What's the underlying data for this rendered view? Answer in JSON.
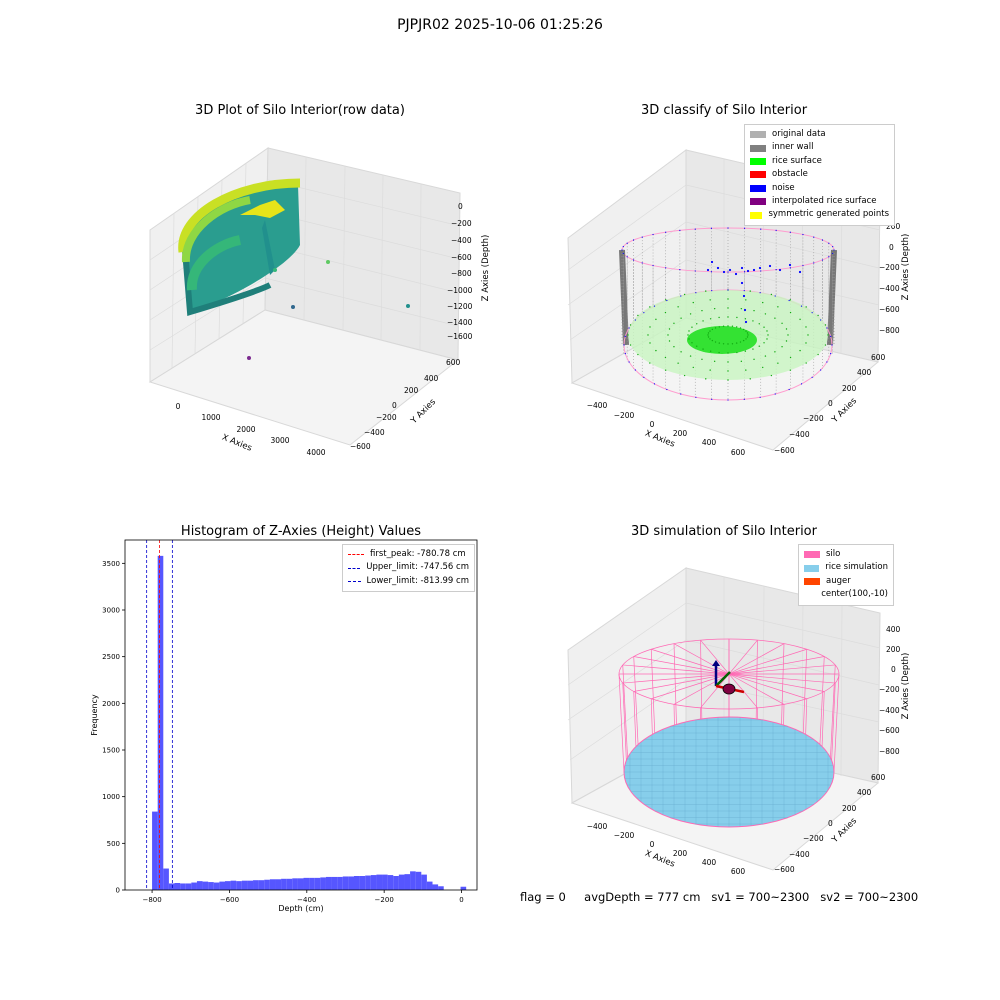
{
  "figure": {
    "suptitle": "PJPJR02 2025-10-06 01:25:26"
  },
  "chart_data": [
    {
      "type": "scatter",
      "title": "3D Plot of Silo Interior(row data)",
      "xlabel": "X Axies",
      "ylabel": "Y Axies",
      "zlabel": "Z Axies (Depth)",
      "x_ticks": [
        "0",
        "1000",
        "2000",
        "3000",
        "4000"
      ],
      "y_ticks": [
        "600",
        "400",
        "200",
        "0",
        "−200",
        "−400",
        "−600"
      ],
      "z_ticks": [
        "0",
        "−200",
        "−400",
        "−600",
        "−800",
        "−1000",
        "−1200",
        "−1400",
        "−1600"
      ],
      "colormap": "viridis"
    },
    {
      "type": "scatter",
      "title": "3D classify of Silo Interior",
      "xlabel": "X Axies",
      "ylabel": "Y Axies",
      "zlabel": "Z Axies (Depth)",
      "x_ticks": [
        "−400",
        "−200",
        "0",
        "200",
        "400",
        "600"
      ],
      "y_ticks": [
        "600",
        "400",
        "200",
        "0",
        "−200",
        "−400",
        "−600"
      ],
      "z_ticks": [
        "200",
        "0",
        "−200",
        "−400",
        "−600",
        "−800"
      ],
      "legend_position": "top-right",
      "legend": [
        {
          "label": "original data",
          "color": "#b0b0b0"
        },
        {
          "label": "inner wall",
          "color": "#808080"
        },
        {
          "label": "rice surface",
          "color": "#00ff00"
        },
        {
          "label": "obstacle",
          "color": "#ff0000"
        },
        {
          "label": "noise",
          "color": "#0000ff"
        },
        {
          "label": "interpolated rice surface",
          "color": "#800080"
        },
        {
          "label": "symmetric generated points",
          "color": "#ffff00"
        }
      ]
    },
    {
      "type": "bar",
      "title": "Histogram of Z-Axies (Height) Values",
      "xlabel": "Depth (cm)",
      "ylabel": "Frequency",
      "xlim": [
        -870,
        40
      ],
      "ylim": [
        0,
        3750
      ],
      "x_ticks": [
        -800,
        -600,
        -400,
        -200,
        0
      ],
      "x_tick_labels": [
        "−800",
        "−600",
        "−400",
        "−200",
        "0"
      ],
      "y_ticks": [
        0,
        500,
        1000,
        1500,
        2000,
        2500,
        3000,
        3500
      ],
      "bar_color": "#4444ff",
      "bin_width": 14.5,
      "bin_starts": [
        -800,
        -785.5,
        -771,
        -756.5,
        -742,
        -727.5,
        -713,
        -698.5,
        -684,
        -669.5,
        -655,
        -640.5,
        -626,
        -611.5,
        -597,
        -582.5,
        -568,
        -553.5,
        -539,
        -524.5,
        -510,
        -495.5,
        -481,
        -466.5,
        -452,
        -437.5,
        -423,
        -408.5,
        -394,
        -379.5,
        -365,
        -350.5,
        -336,
        -321.5,
        -307,
        -292.5,
        -278,
        -263.5,
        -249,
        -234.5,
        -220,
        -205.5,
        -191,
        -176.5,
        -162,
        -147.5,
        -133,
        -118.5,
        -104,
        -89.5,
        -75,
        -60.5,
        -46,
        -31.5,
        -17,
        -2.5
      ],
      "values": [
        840,
        3580,
        230,
        70,
        75,
        70,
        70,
        80,
        95,
        90,
        85,
        80,
        90,
        95,
        100,
        95,
        100,
        100,
        105,
        105,
        110,
        115,
        115,
        120,
        120,
        125,
        125,
        130,
        130,
        130,
        135,
        140,
        140,
        140,
        145,
        145,
        150,
        150,
        155,
        160,
        165,
        165,
        160,
        150,
        165,
        170,
        200,
        195,
        165,
        90,
        60,
        40,
        0,
        0,
        0,
        35
      ],
      "lines": [
        {
          "name": "first_peak: -780.78 cm",
          "x": -780.78,
          "color": "#ff0000"
        },
        {
          "name": "Upper_limit: -747.56 cm",
          "x": -747.56,
          "color": "#0000cc"
        },
        {
          "name": "Lower_limit: -813.99 cm",
          "x": -813.99,
          "color": "#0000cc"
        }
      ],
      "legend_position": "top-right"
    },
    {
      "type": "scatter",
      "title": "3D simulation of Silo Interior",
      "xlabel": "X Axies",
      "ylabel": "Y Axies",
      "zlabel": "Z Axies (Depth)",
      "x_ticks": [
        "−400",
        "−200",
        "0",
        "200",
        "400",
        "600"
      ],
      "y_ticks": [
        "600",
        "400",
        "200",
        "0",
        "−200",
        "−400",
        "−600"
      ],
      "z_ticks": [
        "400",
        "200",
        "0",
        "−200",
        "−400",
        "−600",
        "−800"
      ],
      "legend_position": "top-right",
      "legend": [
        {
          "label": "silo",
          "color": "#ff69b4"
        },
        {
          "label": "rice simulation",
          "color": "#87ceeb"
        },
        {
          "label": "auger",
          "color": "#ff4500"
        },
        {
          "label": "center(100,-10)",
          "color": ""
        }
      ]
    }
  ],
  "footer": {
    "flag": "flag = 0",
    "avg": "avgDepth = 777 cm",
    "sv1": "sv1 = 700~2300",
    "sv2": "sv2 = 700~2300"
  }
}
